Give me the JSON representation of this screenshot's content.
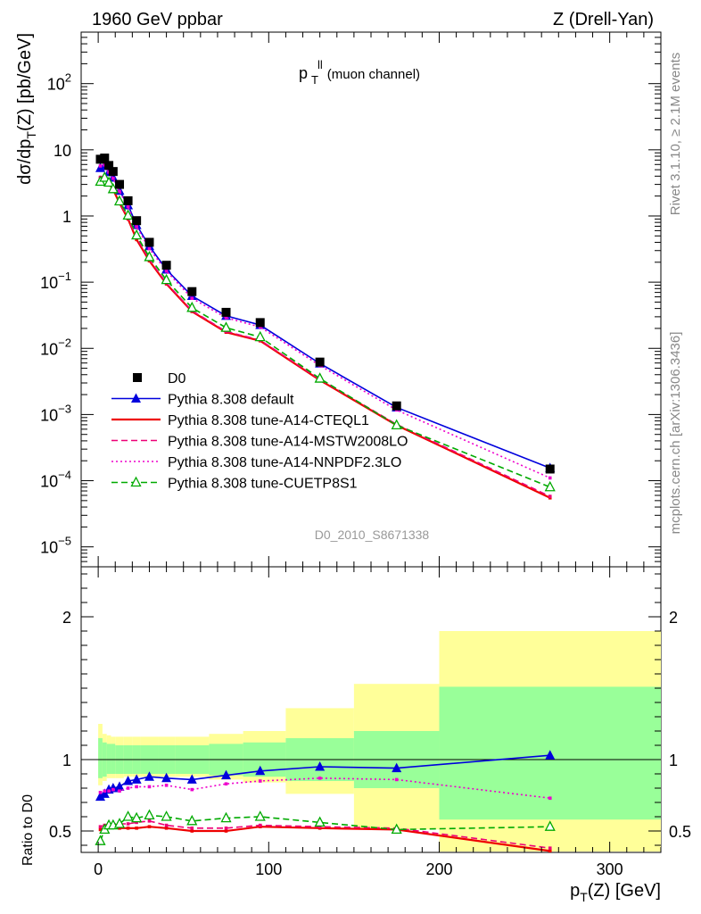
{
  "header": {
    "left": "1960 GeV ppbar",
    "right": "Z (Drell-Yan)"
  },
  "side_labels": {
    "rivet": "Rivet 3.1.10, ≥ 2.1M events",
    "mcplots": "mcplots.cern.ch [arXiv:1306.3436]"
  },
  "panel_title": {
    "main": "p",
    "sup": "ll",
    "sub": "T",
    "rest": " (muon channel)"
  },
  "analysis_id": "D0_2010_S8671338",
  "axes": {
    "ylabel_main": "dσ/dp_T(Z) [pb/GeV]",
    "ylabel_ratio": "Ratio to D0",
    "xlabel": "p_T(Z) [GeV]"
  },
  "chart_data": [
    {
      "type": "scatter",
      "panel": "main",
      "xlim": [
        -10,
        330
      ],
      "ylim": [
        5e-06,
        600
      ],
      "yscale": "log",
      "grid": false,
      "legend_position": "bottom-left",
      "xticks": [
        0,
        100,
        200,
        300
      ],
      "yticks": [
        {
          "v": 1e-05,
          "base": "10",
          "exp": "−5"
        },
        {
          "v": 0.0001,
          "base": "10",
          "exp": "−4"
        },
        {
          "v": 0.001,
          "base": "10",
          "exp": "−3"
        },
        {
          "v": 0.01,
          "base": "10",
          "exp": "−2"
        },
        {
          "v": 0.1,
          "base": "10",
          "exp": "−1"
        },
        {
          "v": 1,
          "base": "1",
          "exp": ""
        },
        {
          "v": 10,
          "base": "10",
          "exp": ""
        },
        {
          "v": 100,
          "base": "10",
          "exp": "2"
        }
      ],
      "series": [
        {
          "name": "D0",
          "style": "data",
          "color": "#000000",
          "x": [
            1.25,
            3.75,
            6.25,
            8.75,
            12.5,
            17.5,
            22.5,
            30,
            40,
            55,
            75,
            95,
            130,
            175,
            265
          ],
          "y": [
            7.2,
            7.5,
            5.8,
            4.7,
            3.0,
            1.7,
            0.85,
            0.4,
            0.18,
            0.072,
            0.035,
            0.0245,
            0.0062,
            0.00135,
            0.00015
          ]
        },
        {
          "name": "Pythia 8.308 default",
          "style": "solid-triangle",
          "color": "#0000dd",
          "x": [
            1.25,
            3.75,
            6.25,
            8.75,
            12.5,
            17.5,
            22.5,
            30,
            40,
            55,
            75,
            95,
            130,
            175,
            265
          ],
          "y": [
            5.3,
            5.7,
            4.6,
            3.8,
            2.4,
            1.45,
            0.73,
            0.35,
            0.155,
            0.062,
            0.031,
            0.0225,
            0.0059,
            0.00128,
            0.000155
          ]
        },
        {
          "name": "Pythia 8.308 tune-A14-CTEQL1",
          "style": "solid",
          "color": "#ee0000",
          "x": [
            1.25,
            3.75,
            6.25,
            8.75,
            12.5,
            17.5,
            22.5,
            30,
            40,
            55,
            75,
            95,
            130,
            175,
            265
          ],
          "y": [
            3.7,
            3.9,
            3.1,
            2.5,
            1.57,
            0.9,
            0.44,
            0.21,
            0.094,
            0.036,
            0.0175,
            0.013,
            0.0033,
            0.00069,
            5.5e-05
          ]
        },
        {
          "name": "Pythia 8.308 tune-A14-MSTW2008LO",
          "style": "dashed",
          "color": "#ee0077",
          "x": [
            1.25,
            3.75,
            6.25,
            8.75,
            12.5,
            17.5,
            22.5,
            30,
            40,
            55,
            75,
            95,
            130,
            175,
            265
          ],
          "y": [
            3.85,
            4.0,
            3.2,
            2.6,
            1.62,
            0.93,
            0.47,
            0.22,
            0.097,
            0.037,
            0.018,
            0.0133,
            0.0034,
            0.00071,
            5.8e-05
          ]
        },
        {
          "name": "Pythia 8.308 tune-A14-NNPDF2.3LO",
          "style": "dotted",
          "color": "#ee00cc",
          "x": [
            1.25,
            3.75,
            6.25,
            8.75,
            12.5,
            17.5,
            22.5,
            30,
            40,
            55,
            75,
            95,
            130,
            175,
            265
          ],
          "y": [
            5.7,
            5.9,
            4.6,
            3.7,
            2.35,
            1.38,
            0.69,
            0.32,
            0.147,
            0.057,
            0.029,
            0.021,
            0.0055,
            0.00117,
            0.00011
          ]
        },
        {
          "name": "Pythia 8.308 tune-CUETP8S1",
          "style": "dashed-open-triangle",
          "color": "#00aa00",
          "x": [
            1.25,
            3.75,
            6.25,
            8.75,
            12.5,
            17.5,
            22.5,
            30,
            40,
            55,
            75,
            95,
            130,
            175,
            265
          ],
          "y": [
            3.3,
            3.8,
            3.2,
            2.55,
            1.67,
            1.02,
            0.51,
            0.24,
            0.108,
            0.041,
            0.0205,
            0.0148,
            0.0035,
            0.00069,
            8e-05
          ]
        }
      ]
    },
    {
      "type": "line",
      "panel": "ratio",
      "xlim": [
        -10,
        330
      ],
      "ylim": [
        0.35,
        2.35
      ],
      "grid": false,
      "yticks": [
        0.5,
        1,
        2
      ],
      "reference_line": 1,
      "bands": {
        "edges": [
          0,
          2.5,
          5,
          7.5,
          10,
          15,
          20,
          25,
          35,
          45,
          65,
          85,
          110,
          150,
          200,
          330
        ],
        "green": [
          [
            0.87,
            1.15
          ],
          [
            0.88,
            1.12
          ],
          [
            0.9,
            1.11
          ],
          [
            0.9,
            1.11
          ],
          [
            0.9,
            1.1
          ],
          [
            0.9,
            1.1
          ],
          [
            0.9,
            1.1
          ],
          [
            0.9,
            1.1
          ],
          [
            0.9,
            1.1
          ],
          [
            0.9,
            1.1
          ],
          [
            0.89,
            1.11
          ],
          [
            0.88,
            1.12
          ],
          [
            0.85,
            1.15
          ],
          [
            0.8,
            1.2
          ],
          [
            0.58,
            1.51
          ]
        ],
        "yellow": [
          [
            0.82,
            1.25
          ],
          [
            0.85,
            1.18
          ],
          [
            0.87,
            1.17
          ],
          [
            0.87,
            1.16
          ],
          [
            0.87,
            1.16
          ],
          [
            0.88,
            1.16
          ],
          [
            0.88,
            1.16
          ],
          [
            0.88,
            1.16
          ],
          [
            0.88,
            1.16
          ],
          [
            0.88,
            1.16
          ],
          [
            0.86,
            1.18
          ],
          [
            0.84,
            1.2
          ],
          [
            0.76,
            1.36
          ],
          [
            0.51,
            1.53
          ],
          [
            0.35,
            1.9
          ]
        ]
      },
      "series": [
        {
          "name": "Pythia 8.308 default",
          "style": "solid-triangle",
          "color": "#0000dd",
          "x": [
            1.25,
            3.75,
            6.25,
            8.75,
            12.5,
            17.5,
            22.5,
            30,
            40,
            55,
            75,
            95,
            130,
            175,
            265
          ],
          "y": [
            0.74,
            0.76,
            0.79,
            0.8,
            0.81,
            0.85,
            0.86,
            0.88,
            0.87,
            0.86,
            0.89,
            0.92,
            0.95,
            0.94,
            1.03
          ]
        },
        {
          "name": "Pythia 8.308 tune-A14-CTEQL1",
          "style": "solid",
          "color": "#ee0000",
          "x": [
            1.25,
            3.75,
            6.25,
            8.75,
            12.5,
            17.5,
            22.5,
            30,
            40,
            55,
            75,
            95,
            130,
            175,
            265
          ],
          "y": [
            0.51,
            0.52,
            0.53,
            0.53,
            0.52,
            0.52,
            0.52,
            0.53,
            0.52,
            0.5,
            0.5,
            0.53,
            0.52,
            0.51,
            0.36
          ]
        },
        {
          "name": "Pythia 8.308 tune-A14-MSTW2008LO",
          "style": "dashed",
          "color": "#ee0077",
          "x": [
            1.25,
            3.75,
            6.25,
            8.75,
            12.5,
            17.5,
            22.5,
            30,
            40,
            55,
            75,
            95,
            130,
            175,
            265
          ],
          "y": [
            0.53,
            0.54,
            0.55,
            0.55,
            0.55,
            0.55,
            0.56,
            0.57,
            0.54,
            0.52,
            0.52,
            0.54,
            0.53,
            0.52,
            0.38
          ]
        },
        {
          "name": "Pythia 8.308 tune-A14-NNPDF2.3LO",
          "style": "dotted",
          "color": "#ee00cc",
          "x": [
            1.25,
            3.75,
            6.25,
            8.75,
            12.5,
            17.5,
            22.5,
            30,
            40,
            55,
            75,
            95,
            130,
            175,
            265
          ],
          "y": [
            0.77,
            0.78,
            0.78,
            0.79,
            0.78,
            0.8,
            0.81,
            0.81,
            0.82,
            0.79,
            0.83,
            0.85,
            0.87,
            0.86,
            0.73
          ]
        },
        {
          "name": "Pythia 8.308 tune-CUETP8S1",
          "style": "dashed-open-triangle",
          "color": "#00aa00",
          "x": [
            1.25,
            3.75,
            6.25,
            8.75,
            12.5,
            17.5,
            22.5,
            30,
            40,
            55,
            75,
            95,
            130,
            175,
            265
          ],
          "y": [
            0.43,
            0.51,
            0.54,
            0.54,
            0.55,
            0.6,
            0.59,
            0.61,
            0.6,
            0.57,
            0.59,
            0.6,
            0.56,
            0.51,
            0.53
          ]
        }
      ]
    }
  ]
}
